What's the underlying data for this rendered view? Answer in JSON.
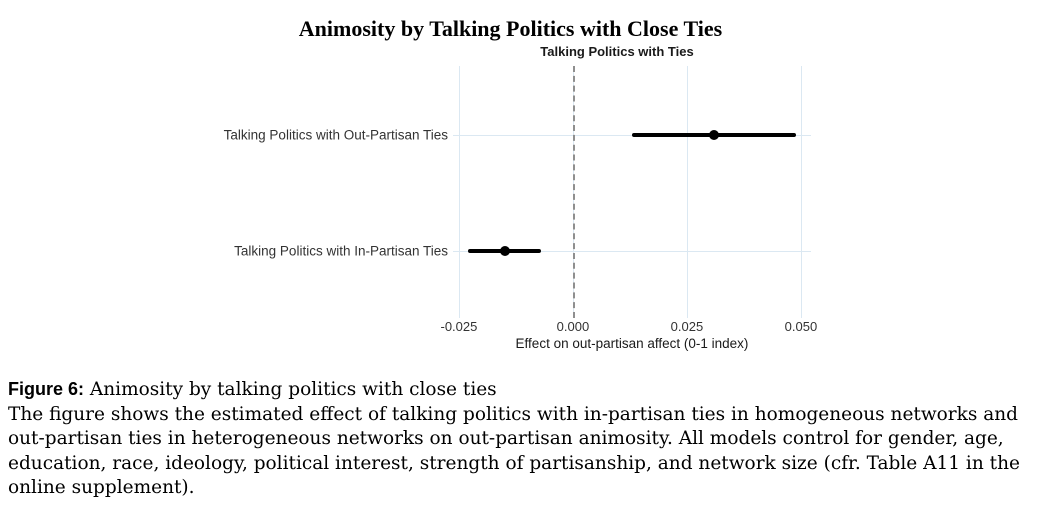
{
  "chart_data": {
    "type": "scatter",
    "variant": "coefficient-dot-whisker-plot",
    "title": "Animosity by Talking Politics with Close Ties",
    "panel_title": "Talking Politics with Ties",
    "xlabel": "Effect on out-partisan affect (0-1 index)",
    "ylabel": "",
    "xlim": [
      -0.0263,
      0.0522
    ],
    "xticks": [
      -0.025,
      0,
      0.025,
      0.05
    ],
    "xtick_labels": [
      "-0.025",
      "0.000",
      "0.025",
      "0.050"
    ],
    "zero_reference": 0,
    "grid": true,
    "legend": "none",
    "categories": [
      "Talking Politics with Out-Partisan Ties",
      "Talking Politics with In-Partisan Ties"
    ],
    "series": [
      {
        "name": "Talking Politics with Out-Partisan Ties",
        "estimate": 0.031,
        "ci_low": 0.013,
        "ci_high": 0.049,
        "row_frac": 0.274
      },
      {
        "name": "Talking Politics with In-Partisan Ties",
        "estimate": -0.015,
        "ci_low": -0.023,
        "ci_high": -0.007,
        "row_frac": 0.735
      }
    ]
  },
  "colors": {
    "grid": "#dbe8f2",
    "zero_line": "#8f8f8f",
    "estimate": "#000000",
    "axis_text": "#333333"
  },
  "caption": {
    "label": "Figure 6:",
    "heading_rest": " Animosity by talking politics with close ties",
    "body_lines": [
      "The figure shows the estimated effect of talking politics with in-partisan ties in homogeneous networks and",
      "out-partisan ties in heterogeneous networks on out-partisan animosity. All models control for gender, age,",
      "education, race, ideology, political interest, strength of partisanship, and network size (cfr. Table A11 in the",
      "online supplement)."
    ]
  }
}
